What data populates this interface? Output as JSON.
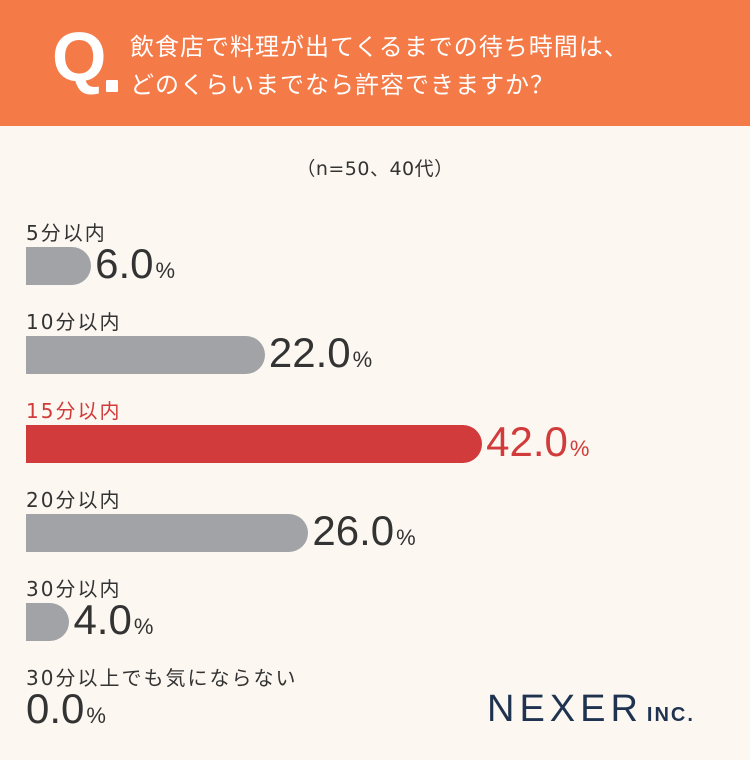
{
  "question": {
    "mark": "Q",
    "line1": "飲食店で料理が出てくるまでの待ち時間は、",
    "line2": "どのくらいまでなら許容できますか？"
  },
  "sample_note": "（n=50、40代）",
  "colors": {
    "header": "#f47a48",
    "bar": "#a1a3a7",
    "highlight": "#d13b3b",
    "background": "#fcf8f1"
  },
  "chart_data": {
    "type": "bar",
    "orientation": "horizontal",
    "categories": [
      "5分以内",
      "10分以内",
      "15分以内",
      "20分以内",
      "30分以内",
      "30分以上でも気にならない"
    ],
    "values": [
      6.0,
      22.0,
      42.0,
      26.0,
      4.0,
      0.0
    ],
    "value_labels": [
      "6.0",
      "22.0",
      "42.0",
      "26.0",
      "4.0",
      "0.0"
    ],
    "unit": "%",
    "highlight_index": 2,
    "grid": false,
    "legend": "none"
  },
  "logo": {
    "main": "NEXER",
    "sub": "INC."
  }
}
